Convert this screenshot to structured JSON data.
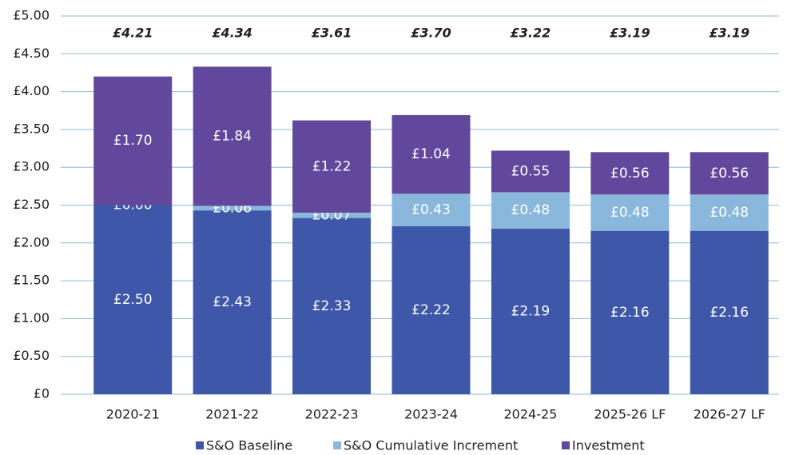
{
  "chart_data": {
    "type": "stacked_bar",
    "categories": [
      "2020-21",
      "2021-22",
      "2022-23",
      "2023-24",
      "2024-25",
      "2025-26 LF",
      "2026-27 LF"
    ],
    "series": [
      {
        "name": "S&O Baseline",
        "color": "#3f57a8",
        "values": [
          2.5,
          2.43,
          2.33,
          2.22,
          2.19,
          2.16,
          2.16
        ],
        "value_labels": [
          "£2.50",
          "£2.43",
          "£2.33",
          "£2.22",
          "£2.19",
          "£2.16",
          "£2.16"
        ]
      },
      {
        "name": "S&O Cumulative Increment",
        "color": "#8ab8dc",
        "values": [
          0.0,
          0.06,
          0.07,
          0.43,
          0.48,
          0.48,
          0.48
        ],
        "value_labels": [
          "£0.00",
          "£0.06",
          "£0.07",
          "£0.43",
          "£0.48",
          "£0.48",
          "£0.48"
        ]
      },
      {
        "name": "Investment",
        "color": "#62489c",
        "values": [
          1.7,
          1.84,
          1.22,
          1.04,
          0.55,
          0.56,
          0.56
        ],
        "value_labels": [
          "£1.70",
          "£1.84",
          "£1.22",
          "£1.04",
          "£0.55",
          "£0.56",
          "£0.56"
        ]
      }
    ],
    "total_labels": [
      "£4.21",
      "£4.34",
      "£3.61",
      "£3.70",
      "£3.22",
      "£3.19",
      "£3.19"
    ],
    "ylim": [
      0,
      5
    ],
    "yticks": [
      {
        "value": 0,
        "label": "£0"
      },
      {
        "value": 0.5,
        "label": "£0.50"
      },
      {
        "value": 1,
        "label": "£1.00"
      },
      {
        "value": 1.5,
        "label": "£1.50"
      },
      {
        "value": 2,
        "label": "£2.00"
      },
      {
        "value": 2.5,
        "label": "£2.50"
      },
      {
        "value": 3,
        "label": "£3.00"
      },
      {
        "value": 3.5,
        "label": "£3.50"
      },
      {
        "value": 4,
        "label": "£4.00"
      },
      {
        "value": 4.5,
        "label": "£4.50"
      },
      {
        "value": 5,
        "label": "£5.00"
      }
    ],
    "grid": true,
    "legend": "bottom"
  }
}
